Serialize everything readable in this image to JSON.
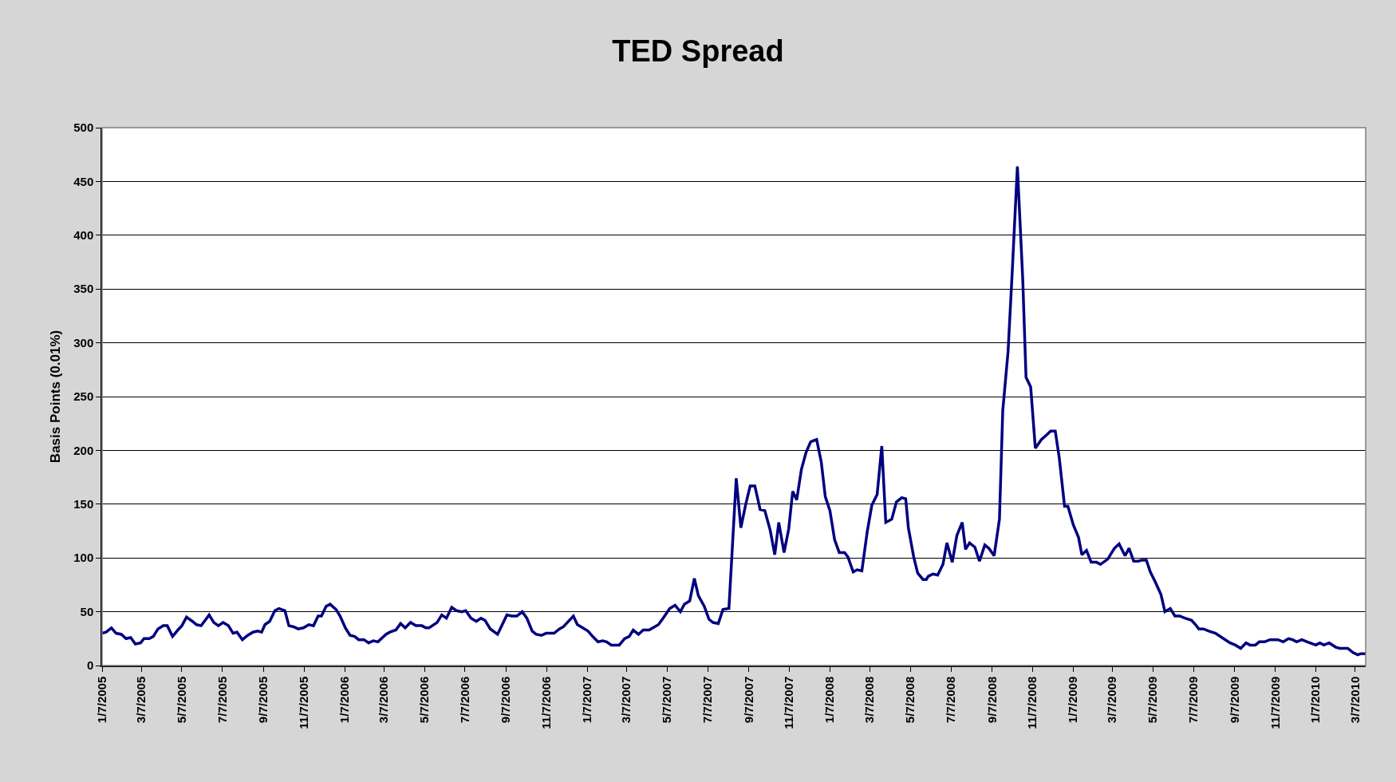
{
  "chart_data": {
    "type": "line",
    "title": "TED Spread",
    "ylabel": "Basis Points (0.01%)",
    "x": [
      "2005-01-07",
      "2005-01-13",
      "2005-01-21",
      "2005-01-28",
      "2005-02-05",
      "2005-02-12",
      "2005-02-19",
      "2005-02-26",
      "2005-03-06",
      "2005-03-11",
      "2005-03-19",
      "2005-03-25",
      "2005-04-01",
      "2005-04-09",
      "2005-04-15",
      "2005-04-23",
      "2005-05-01",
      "2005-05-07",
      "2005-05-14",
      "2005-05-23",
      "2005-05-29",
      "2005-06-05",
      "2005-06-17",
      "2005-06-24",
      "2005-07-01",
      "2005-07-08",
      "2005-07-16",
      "2005-07-23",
      "2005-07-29",
      "2005-08-06",
      "2005-08-14",
      "2005-08-22",
      "2005-08-29",
      "2005-09-04",
      "2005-09-09",
      "2005-09-16",
      "2005-09-24",
      "2005-09-30",
      "2005-10-09",
      "2005-10-15",
      "2005-10-22",
      "2005-10-29",
      "2005-11-06",
      "2005-11-14",
      "2005-11-21",
      "2005-11-28",
      "2005-12-03",
      "2005-12-10",
      "2005-12-16",
      "2005-12-25",
      "2005-12-31",
      "2006-01-08",
      "2006-01-15",
      "2006-01-22",
      "2006-01-28",
      "2006-02-05",
      "2006-02-12",
      "2006-02-19",
      "2006-02-26",
      "2006-03-10",
      "2006-03-16",
      "2006-03-25",
      "2006-04-01",
      "2006-04-08",
      "2006-04-16",
      "2006-04-24",
      "2006-05-03",
      "2006-05-09",
      "2006-05-14",
      "2006-05-26",
      "2006-06-02",
      "2006-06-09",
      "2006-06-17",
      "2006-06-24",
      "2006-07-02",
      "2006-07-08",
      "2006-07-16",
      "2006-07-24",
      "2006-07-31",
      "2006-08-06",
      "2006-08-14",
      "2006-08-25",
      "2006-09-08",
      "2006-09-15",
      "2006-09-23",
      "2006-10-01",
      "2006-10-08",
      "2006-10-16",
      "2006-10-22",
      "2006-10-30",
      "2006-11-06",
      "2006-11-18",
      "2006-11-26",
      "2006-12-02",
      "2006-12-17",
      "2006-12-23",
      "2007-01-08",
      "2007-01-15",
      "2007-01-23",
      "2007-01-30",
      "2007-02-05",
      "2007-02-12",
      "2007-02-17",
      "2007-02-24",
      "2007-03-04",
      "2007-03-11",
      "2007-03-17",
      "2007-03-25",
      "2007-04-01",
      "2007-04-10",
      "2007-04-24",
      "2007-05-01",
      "2007-05-11",
      "2007-05-19",
      "2007-05-27",
      "2007-06-02",
      "2007-06-10",
      "2007-06-17",
      "2007-06-23",
      "2007-07-02",
      "2007-07-09",
      "2007-07-15",
      "2007-07-23",
      "2007-07-30",
      "2007-08-08",
      "2007-08-19",
      "2007-08-26",
      "2007-09-02",
      "2007-09-09",
      "2007-09-16",
      "2007-09-24",
      "2007-10-01",
      "2007-10-09",
      "2007-10-16",
      "2007-10-22",
      "2007-10-30",
      "2007-11-06",
      "2007-11-12",
      "2007-11-18",
      "2007-11-25",
      "2007-12-02",
      "2007-12-09",
      "2007-12-18",
      "2007-12-25",
      "2007-12-31",
      "2008-01-07",
      "2008-01-14",
      "2008-01-21",
      "2008-01-29",
      "2008-02-03",
      "2008-02-11",
      "2008-02-17",
      "2008-02-24",
      "2008-03-03",
      "2008-03-10",
      "2008-03-18",
      "2008-03-25",
      "2008-03-31",
      "2008-04-09",
      "2008-04-16",
      "2008-04-24",
      "2008-04-30",
      "2008-05-04",
      "2008-05-12",
      "2008-05-18",
      "2008-05-26",
      "2008-05-31",
      "2008-06-03",
      "2008-06-10",
      "2008-06-17",
      "2008-06-25",
      "2008-07-01",
      "2008-07-09",
      "2008-07-16",
      "2008-07-24",
      "2008-07-29",
      "2008-08-04",
      "2008-08-12",
      "2008-08-19",
      "2008-08-27",
      "2008-09-02",
      "2008-09-10",
      "2008-09-18",
      "2008-09-23",
      "2008-10-01",
      "2008-10-07",
      "2008-10-15",
      "2008-10-23",
      "2008-10-28",
      "2008-11-04",
      "2008-11-11",
      "2008-11-20",
      "2008-11-29",
      "2008-12-04",
      "2008-12-11",
      "2008-12-17",
      "2008-12-25",
      "2008-12-30",
      "2009-01-07",
      "2009-01-15",
      "2009-01-20",
      "2009-01-27",
      "2009-02-03",
      "2009-02-11",
      "2009-02-17",
      "2009-02-28",
      "2009-03-10",
      "2009-03-17",
      "2009-03-26",
      "2009-04-01",
      "2009-04-08",
      "2009-04-15",
      "2009-04-20",
      "2009-04-27",
      "2009-05-03",
      "2009-05-11",
      "2009-05-19",
      "2009-05-25",
      "2009-06-02",
      "2009-06-09",
      "2009-06-16",
      "2009-06-24",
      "2009-07-04",
      "2009-07-10",
      "2009-07-15",
      "2009-07-22",
      "2009-07-30",
      "2009-08-09",
      "2009-08-21",
      "2009-08-31",
      "2009-09-08",
      "2009-09-16",
      "2009-09-24",
      "2009-09-30",
      "2009-10-08",
      "2009-10-14",
      "2009-10-22",
      "2009-10-30",
      "2009-11-11",
      "2009-11-19",
      "2009-11-27",
      "2009-12-03",
      "2009-12-09",
      "2009-12-17",
      "2009-12-25",
      "2010-01-07",
      "2010-01-13",
      "2010-01-19",
      "2010-01-27",
      "2010-02-06",
      "2010-02-12",
      "2010-02-24",
      "2010-03-04",
      "2010-03-11",
      "2010-03-16",
      "2010-03-23"
    ],
    "series": [
      {
        "color": "#000080",
        "values": [
          30,
          31,
          35,
          30,
          29,
          25,
          26,
          20,
          21,
          25,
          25,
          27,
          34,
          37,
          37,
          27,
          33,
          37,
          45,
          41,
          38,
          37,
          47,
          40,
          37,
          40,
          37,
          30,
          31,
          24,
          28,
          31,
          32,
          31,
          38,
          41,
          51,
          53,
          51,
          37,
          36,
          34,
          35,
          38,
          37,
          46,
          46,
          55,
          57,
          52,
          46,
          35,
          28,
          27,
          24,
          24,
          21,
          23,
          22,
          29,
          31,
          33,
          39,
          35,
          40,
          37,
          37,
          35,
          35,
          40,
          47,
          44,
          54,
          51,
          50,
          51,
          44,
          41,
          44,
          42,
          34,
          29,
          47,
          46,
          46,
          50,
          44,
          32,
          29,
          28,
          30,
          30,
          34,
          36,
          46,
          38,
          32,
          27,
          22,
          23,
          22,
          19,
          19,
          19,
          25,
          27,
          33,
          29,
          33,
          33,
          38,
          44,
          53,
          56,
          50,
          57,
          60,
          81,
          65,
          55,
          43,
          40,
          39,
          52,
          53,
          174,
          128,
          149,
          167,
          167,
          145,
          144,
          126,
          103,
          133,
          105,
          127,
          162,
          154,
          182,
          198,
          208,
          210,
          189,
          157,
          144,
          117,
          105,
          105,
          101,
          87,
          89,
          88,
          124,
          149,
          159,
          204,
          133,
          136,
          152,
          156,
          155,
          128,
          101,
          86,
          80,
          80,
          83,
          85,
          84,
          94,
          114,
          96,
          121,
          133,
          108,
          114,
          110,
          97,
          112,
          109,
          102,
          136,
          237,
          292,
          363,
          464,
          360,
          268,
          259,
          202,
          210,
          215,
          218,
          218,
          193,
          148,
          148,
          131,
          119,
          103,
          107,
          96,
          96,
          94,
          99,
          109,
          113,
          102,
          109,
          97,
          97,
          98,
          98,
          87,
          77,
          66,
          50,
          53,
          46,
          46,
          44,
          42,
          38,
          34,
          34,
          32,
          30,
          25,
          21,
          19,
          16,
          21,
          19,
          19,
          22,
          22,
          24,
          24,
          22,
          25,
          24,
          22,
          24,
          22,
          19,
          21,
          19,
          21,
          17,
          16,
          16,
          12,
          10,
          11,
          11
        ]
      }
    ],
    "xlim": [
      "2005-01-07",
      "2010-03-23"
    ],
    "xticks": [
      {
        "value": "2005-01-07",
        "label": "1/7/2005"
      },
      {
        "value": "2005-03-07",
        "label": "3/7/2005"
      },
      {
        "value": "2005-05-07",
        "label": "5/7/2005"
      },
      {
        "value": "2005-07-07",
        "label": "7/7/2005"
      },
      {
        "value": "2005-09-07",
        "label": "9/7/2005"
      },
      {
        "value": "2005-11-07",
        "label": "11/7/2005"
      },
      {
        "value": "2006-01-07",
        "label": "1/7/2006"
      },
      {
        "value": "2006-03-07",
        "label": "3/7/2006"
      },
      {
        "value": "2006-05-07",
        "label": "5/7/2006"
      },
      {
        "value": "2006-07-07",
        "label": "7/7/2006"
      },
      {
        "value": "2006-09-07",
        "label": "9/7/2006"
      },
      {
        "value": "2006-11-07",
        "label": "11/7/2006"
      },
      {
        "value": "2007-01-07",
        "label": "1/7/2007"
      },
      {
        "value": "2007-03-07",
        "label": "3/7/2007"
      },
      {
        "value": "2007-05-07",
        "label": "5/7/2007"
      },
      {
        "value": "2007-07-07",
        "label": "7/7/2007"
      },
      {
        "value": "2007-09-07",
        "label": "9/7/2007"
      },
      {
        "value": "2007-11-07",
        "label": "11/7/2007"
      },
      {
        "value": "2008-01-07",
        "label": "1/7/2008"
      },
      {
        "value": "2008-03-07",
        "label": "3/7/2008"
      },
      {
        "value": "2008-05-07",
        "label": "5/7/2008"
      },
      {
        "value": "2008-07-07",
        "label": "7/7/2008"
      },
      {
        "value": "2008-09-07",
        "label": "9/7/2008"
      },
      {
        "value": "2008-11-07",
        "label": "11/7/2008"
      },
      {
        "value": "2009-01-07",
        "label": "1/7/2009"
      },
      {
        "value": "2009-03-07",
        "label": "3/7/2009"
      },
      {
        "value": "2009-05-07",
        "label": "5/7/2009"
      },
      {
        "value": "2009-07-07",
        "label": "7/7/2009"
      },
      {
        "value": "2009-09-07",
        "label": "9/7/2009"
      },
      {
        "value": "2009-11-07",
        "label": "11/7/2009"
      },
      {
        "value": "2010-01-07",
        "label": "1/7/2010"
      },
      {
        "value": "2010-03-07",
        "label": "3/7/2010"
      }
    ],
    "ylim": [
      0,
      500
    ],
    "yticks": [
      0,
      50,
      100,
      150,
      200,
      250,
      300,
      350,
      400,
      450,
      500
    ],
    "grid": "y",
    "marker": "none",
    "line_style": "solid"
  }
}
